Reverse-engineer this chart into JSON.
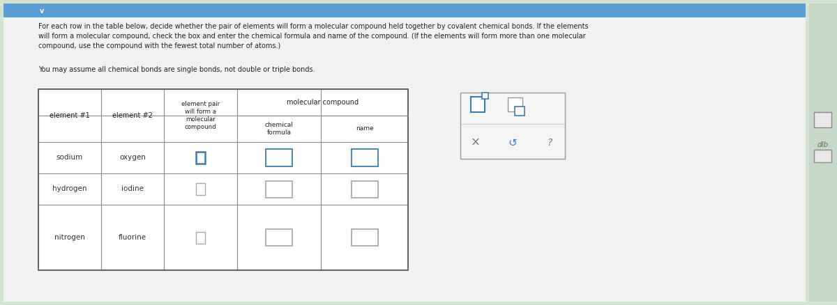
{
  "bg_color": "#d4e4d4",
  "panel_color": "#f2f2f2",
  "rows": [
    [
      "sodium",
      "oxygen"
    ],
    [
      "hydrogen",
      "iodine"
    ],
    [
      "nitrogen",
      "fluorine"
    ]
  ],
  "checkbox_blue": "#3a7abf",
  "checkbox_gray": "#aaaaaa",
  "top_bar_color": "#5a9fd4",
  "instruction_line1": "For each row in the table below, decide whether the pair of elements will form a molecular compound held together by covalent chemical bonds. If the elements",
  "instruction_line2": "will form a molecular compound, check the box and enter the chemical formula and name of the compound. (If the elements will form more than one molecular",
  "instruction_line3": "compound, use the compound with the fewest total number of atoms.)",
  "instruction_line4": "You may assume all chemical bonds are single bonds, not double or triple bonds."
}
